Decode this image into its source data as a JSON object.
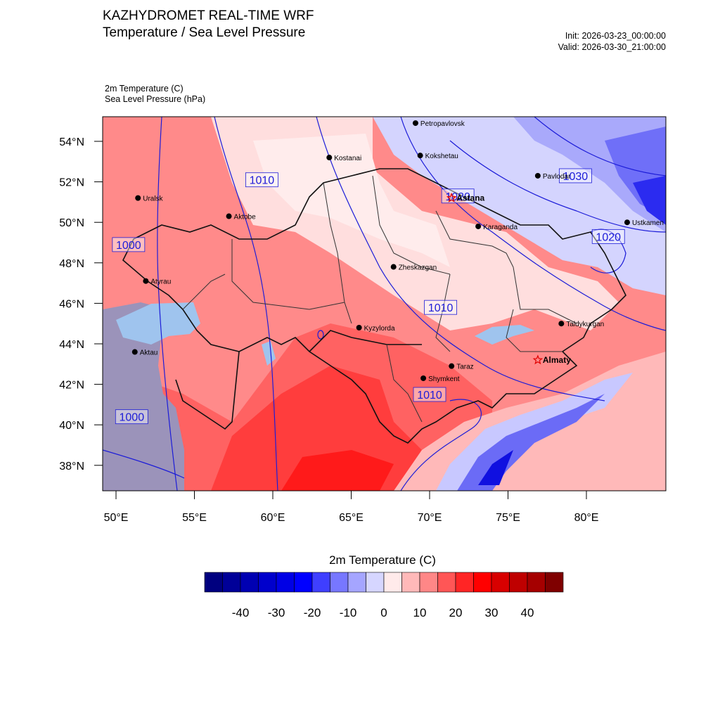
{
  "header": {
    "title_line1": "KAZHYDROMET REAL-TIME WRF",
    "title_line2": "Temperature / Sea Level Pressure",
    "init": "Init: 2026-03-23_00:00:00",
    "valid": "Valid: 2026-03-30_21:00:00"
  },
  "fields": {
    "line1": "2m Temperature   (C)",
    "line2": "Sea Level Pressure   (hPa)"
  },
  "axes": {
    "lat_labels": [
      "54°N",
      "52°N",
      "50°N",
      "48°N",
      "46°N",
      "44°N",
      "42°N",
      "40°N",
      "38°N"
    ],
    "lon_labels": [
      "50°E",
      "55°E",
      "60°E",
      "65°E",
      "70°E",
      "75°E",
      "80°E"
    ]
  },
  "cities": [
    {
      "name": "Petropavlovsk",
      "lon": 69.1,
      "lat": 54.9,
      "bold": false,
      "star": false
    },
    {
      "name": "Kostanai",
      "lon": 63.6,
      "lat": 53.2,
      "bold": false,
      "star": false
    },
    {
      "name": "Kokshetau",
      "lon": 69.4,
      "lat": 53.3,
      "bold": false,
      "star": false
    },
    {
      "name": "Pavlodar",
      "lon": 76.9,
      "lat": 52.3,
      "bold": false,
      "star": false
    },
    {
      "name": "Uralsk",
      "lon": 51.4,
      "lat": 51.2,
      "bold": false,
      "star": false
    },
    {
      "name": "Aktobe",
      "lon": 57.2,
      "lat": 50.3,
      "bold": false,
      "star": false
    },
    {
      "name": "Astana",
      "lon": 71.4,
      "lat": 51.2,
      "bold": true,
      "star": true
    },
    {
      "name": "Ustkamen",
      "lon": 82.6,
      "lat": 50.0,
      "bold": false,
      "star": false
    },
    {
      "name": "Karaganda",
      "lon": 73.1,
      "lat": 49.8,
      "bold": false,
      "star": false
    },
    {
      "name": "Atyrau",
      "lon": 51.9,
      "lat": 47.1,
      "bold": false,
      "star": false
    },
    {
      "name": "Zheskazgan",
      "lon": 67.7,
      "lat": 47.8,
      "bold": false,
      "star": false
    },
    {
      "name": "Taldykurgan",
      "lon": 78.4,
      "lat": 45.0,
      "bold": false,
      "star": false
    },
    {
      "name": "Aktau",
      "lon": 51.2,
      "lat": 43.6,
      "bold": false,
      "star": false
    },
    {
      "name": "Kyzylorda",
      "lon": 65.5,
      "lat": 44.8,
      "bold": false,
      "star": false
    },
    {
      "name": "Almaty",
      "lon": 76.9,
      "lat": 43.2,
      "bold": true,
      "star": true
    },
    {
      "name": "Taraz",
      "lon": 71.4,
      "lat": 42.9,
      "bold": false,
      "star": false
    },
    {
      "name": "Shymkent",
      "lon": 69.6,
      "lat": 42.3,
      "bold": false,
      "star": false
    }
  ],
  "isobar_labels": [
    {
      "text": "1010",
      "lon": 59.3,
      "lat": 52.1
    },
    {
      "text": "1030",
      "lon": 79.3,
      "lat": 52.3
    },
    {
      "text": "1020",
      "lon": 71.8,
      "lat": 51.3
    },
    {
      "text": "1000",
      "lon": 50.8,
      "lat": 48.9
    },
    {
      "text": "1020",
      "lon": 81.4,
      "lat": 49.3
    },
    {
      "text": "1010",
      "lon": 70.7,
      "lat": 45.8
    },
    {
      "text": "1000",
      "lon": 51.0,
      "lat": 40.4
    },
    {
      "text": "1010",
      "lon": 70.0,
      "lat": 41.5
    }
  ],
  "colorbar": {
    "title": "2m Temperature  (C)",
    "colors": [
      "#00007f",
      "#000098",
      "#0000b2",
      "#0000cc",
      "#0000e5",
      "#0000ff",
      "#3f3fff",
      "#7777ff",
      "#a5a5ff",
      "#d6d6ff",
      "#ffeaea",
      "#ffb9b9",
      "#ff8787",
      "#ff5656",
      "#ff2525",
      "#ff0000",
      "#d80000",
      "#bf0000",
      "#a50000",
      "#7f0000"
    ],
    "tick_labels": [
      "-40",
      "-30",
      "-20",
      "-10",
      "0",
      "10",
      "20",
      "30",
      "40"
    ]
  },
  "colors": {
    "isobar": "#1c1cd8",
    "border": "#111111",
    "sea_caspian": "#9b93ba",
    "sea_shallow": "#9fc4ee"
  }
}
